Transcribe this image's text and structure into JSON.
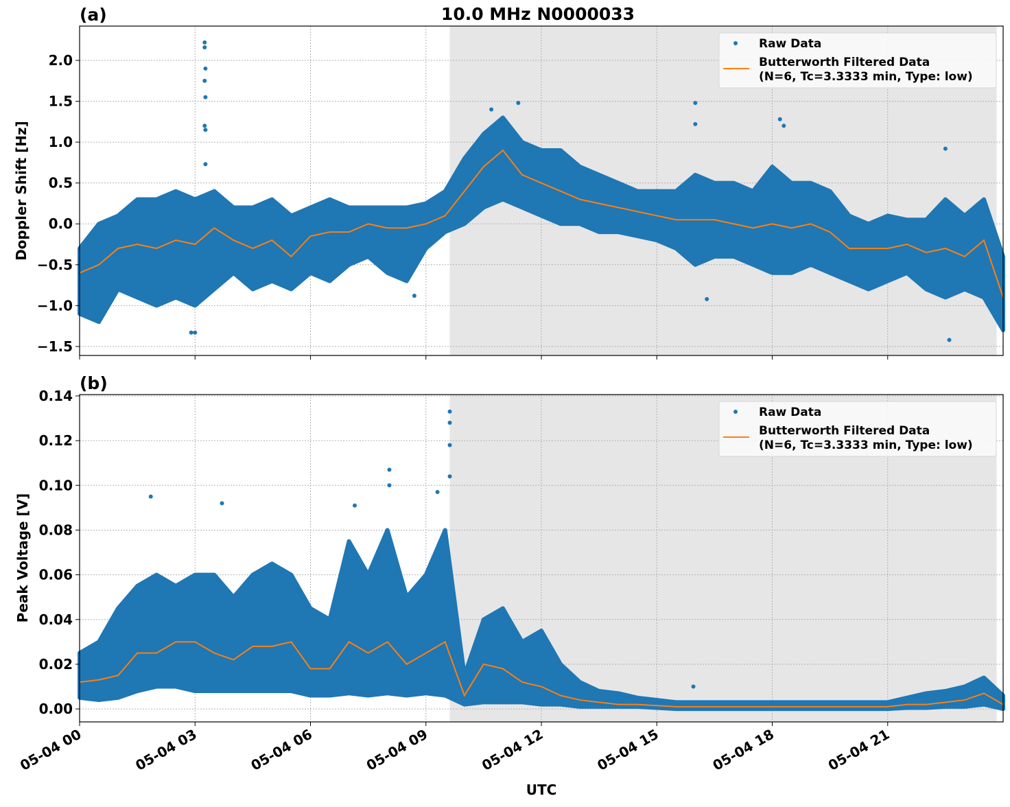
{
  "title": "10.0 MHz N0000033",
  "x_tick_labels": [
    "05-04 00",
    "05-04 03",
    "05-04 06",
    "05-04 09",
    "05-04 12",
    "05-04 15",
    "05-04 18",
    "05-04 21"
  ],
  "x_tick_hours": [
    0,
    3,
    6,
    9,
    12,
    15,
    18,
    21
  ],
  "xlabel": "UTC",
  "colors": {
    "raw": "#1f77b4",
    "filtered": "#ff7f0e",
    "shade": "#e6e6e6"
  },
  "legend": {
    "raw": "Raw Data",
    "filtered_line1": "Butterworth Filtered Data",
    "filtered_line2": "(N=6, Tc=3.3333 min, Type: low)"
  },
  "chart_data": [
    {
      "type": "scatter",
      "panel_label": "(a)",
      "ylabel": "Doppler Shift [Hz]",
      "xlim_hours": [
        0,
        24
      ],
      "ylim": [
        -1.61,
        2.42
      ],
      "y_ticks": [
        "−1.5",
        "−1.0",
        "−0.5",
        "0.0",
        "0.5",
        "1.0",
        "1.5",
        "2.0"
      ],
      "y_tick_values": [
        -1.5,
        -1.0,
        -0.5,
        0.0,
        0.5,
        1.0,
        1.5,
        2.0
      ],
      "grid": true,
      "legend_placement": "upper-right",
      "shaded_span_hours": [
        9.62,
        23.83
      ],
      "x_hours": [
        0,
        0.5,
        1,
        1.5,
        2,
        2.5,
        3,
        3.5,
        4,
        4.5,
        5,
        5.5,
        6,
        6.5,
        7,
        7.5,
        8,
        8.5,
        9,
        9.5,
        10,
        10.5,
        11,
        11.5,
        12,
        12.5,
        13,
        13.5,
        14,
        14.5,
        15,
        15.5,
        16,
        16.5,
        17,
        17.5,
        18,
        18.5,
        19,
        19.5,
        20,
        20.5,
        21,
        21.5,
        22,
        22.5,
        23,
        23.5,
        24
      ],
      "series": [
        {
          "name": "Raw Data",
          "kind": "envelope",
          "low": [
            -1.1,
            -1.2,
            -0.8,
            -0.9,
            -1.0,
            -0.9,
            -1.0,
            -0.8,
            -0.6,
            -0.8,
            -0.7,
            -0.8,
            -0.6,
            -0.7,
            -0.5,
            -0.4,
            -0.6,
            -0.7,
            -0.3,
            -0.1,
            0.0,
            0.2,
            0.3,
            0.2,
            0.1,
            0.0,
            0.0,
            -0.1,
            -0.1,
            -0.15,
            -0.2,
            -0.3,
            -0.5,
            -0.4,
            -0.4,
            -0.5,
            -0.6,
            -0.6,
            -0.5,
            -0.6,
            -0.7,
            -0.8,
            -0.7,
            -0.6,
            -0.8,
            -0.9,
            -0.8,
            -0.9,
            -1.3
          ],
          "high": [
            -0.3,
            0.0,
            0.1,
            0.3,
            0.3,
            0.4,
            0.3,
            0.4,
            0.2,
            0.2,
            0.3,
            0.1,
            0.2,
            0.3,
            0.2,
            0.2,
            0.2,
            0.2,
            0.25,
            0.4,
            0.8,
            1.1,
            1.3,
            1.0,
            0.9,
            0.9,
            0.7,
            0.6,
            0.5,
            0.4,
            0.4,
            0.4,
            0.6,
            0.5,
            0.5,
            0.4,
            0.7,
            0.5,
            0.5,
            0.4,
            0.1,
            0.0,
            0.1,
            0.05,
            0.05,
            0.3,
            0.1,
            0.3,
            -0.4
          ],
          "outliers": [
            [
              3.25,
              2.22
            ],
            [
              3.25,
              2.16
            ],
            [
              3.27,
              1.9
            ],
            [
              3.25,
              1.75
            ],
            [
              3.27,
              1.55
            ],
            [
              3.25,
              1.2
            ],
            [
              3.27,
              1.15
            ],
            [
              3.27,
              0.73
            ],
            [
              3.0,
              -1.33
            ],
            [
              2.9,
              -1.33
            ],
            [
              16.0,
              1.48
            ],
            [
              16.0,
              1.22
            ],
            [
              18.2,
              1.28
            ],
            [
              18.3,
              1.2
            ],
            [
              22.5,
              0.92
            ],
            [
              22.6,
              -1.42
            ],
            [
              11.4,
              1.48
            ],
            [
              10.7,
              1.4
            ],
            [
              16.3,
              -0.92
            ],
            [
              8.7,
              -0.88
            ]
          ]
        },
        {
          "name": "Butterworth Filtered Data",
          "kind": "line",
          "values": [
            -0.6,
            -0.5,
            -0.3,
            -0.25,
            -0.3,
            -0.2,
            -0.25,
            -0.05,
            -0.2,
            -0.3,
            -0.2,
            -0.4,
            -0.15,
            -0.1,
            -0.1,
            0.0,
            -0.05,
            -0.05,
            0.0,
            0.1,
            0.4,
            0.7,
            0.9,
            0.6,
            0.5,
            0.4,
            0.3,
            0.25,
            0.2,
            0.15,
            0.1,
            0.05,
            0.05,
            0.05,
            0.0,
            -0.05,
            0.0,
            -0.05,
            0.0,
            -0.1,
            -0.3,
            -0.3,
            -0.3,
            -0.25,
            -0.35,
            -0.3,
            -0.4,
            -0.2,
            -0.9
          ]
        }
      ]
    },
    {
      "type": "scatter",
      "panel_label": "(b)",
      "ylabel": "Peak Voltage [V]",
      "xlim_hours": [
        0,
        24
      ],
      "ylim": [
        -0.0058,
        0.1406
      ],
      "y_ticks": [
        "0.00",
        "0.02",
        "0.04",
        "0.06",
        "0.08",
        "0.10",
        "0.12",
        "0.14"
      ],
      "y_tick_values": [
        0,
        0.02,
        0.04,
        0.06,
        0.08,
        0.1,
        0.12,
        0.14
      ],
      "grid": true,
      "legend_placement": "upper-right",
      "shaded_span_hours": [
        9.62,
        23.83
      ],
      "x_hours": [
        0,
        0.5,
        1,
        1.5,
        2,
        2.5,
        3,
        3.5,
        4,
        4.5,
        5,
        5.5,
        6,
        6.5,
        7,
        7.5,
        8,
        8.5,
        9,
        9.5,
        10,
        10.5,
        11,
        11.5,
        12,
        12.5,
        13,
        13.5,
        14,
        14.5,
        15,
        15.5,
        16,
        16.5,
        17,
        17.5,
        18,
        18.5,
        19,
        19.5,
        20,
        20.5,
        21,
        21.5,
        22,
        22.5,
        23,
        23.5,
        24
      ],
      "series": [
        {
          "name": "Raw Data",
          "kind": "envelope",
          "low": [
            0.005,
            0.004,
            0.005,
            0.008,
            0.01,
            0.01,
            0.008,
            0.008,
            0.008,
            0.008,
            0.008,
            0.008,
            0.006,
            0.006,
            0.007,
            0.006,
            0.007,
            0.006,
            0.007,
            0.006,
            0.002,
            0.003,
            0.003,
            0.003,
            0.002,
            0.002,
            0.001,
            0.001,
            0.001,
            0.001,
            0.0005,
            0,
            0,
            0,
            0,
            0,
            0,
            0,
            0,
            0,
            0,
            0,
            0,
            0.0005,
            0.0005,
            0.001,
            0.001,
            0.002,
            0.0
          ],
          "high": [
            0.025,
            0.03,
            0.045,
            0.055,
            0.06,
            0.055,
            0.06,
            0.06,
            0.05,
            0.06,
            0.065,
            0.06,
            0.045,
            0.04,
            0.075,
            0.06,
            0.08,
            0.05,
            0.06,
            0.08,
            0.015,
            0.04,
            0.045,
            0.03,
            0.035,
            0.02,
            0.012,
            0.008,
            0.007,
            0.005,
            0.004,
            0.003,
            0.003,
            0.003,
            0.003,
            0.003,
            0.003,
            0.003,
            0.003,
            0.003,
            0.003,
            0.003,
            0.003,
            0.005,
            0.007,
            0.008,
            0.01,
            0.014,
            0.006
          ],
          "outliers": [
            [
              9.62,
              0.133
            ],
            [
              9.62,
              0.128
            ],
            [
              9.62,
              0.118
            ],
            [
              9.62,
              0.104
            ],
            [
              8.05,
              0.107
            ],
            [
              8.05,
              0.1
            ],
            [
              3.7,
              0.092
            ],
            [
              1.85,
              0.095
            ],
            [
              7.15,
              0.091
            ],
            [
              9.3,
              0.097
            ],
            [
              15.95,
              0.01
            ]
          ]
        },
        {
          "name": "Butterworth Filtered Data",
          "kind": "line",
          "values": [
            0.012,
            0.013,
            0.015,
            0.025,
            0.025,
            0.03,
            0.03,
            0.025,
            0.022,
            0.028,
            0.028,
            0.03,
            0.018,
            0.018,
            0.03,
            0.025,
            0.03,
            0.02,
            0.025,
            0.03,
            0.006,
            0.02,
            0.018,
            0.012,
            0.01,
            0.006,
            0.004,
            0.003,
            0.002,
            0.002,
            0.0015,
            0.001,
            0.001,
            0.001,
            0.001,
            0.001,
            0.001,
            0.001,
            0.001,
            0.001,
            0.001,
            0.001,
            0.001,
            0.002,
            0.002,
            0.003,
            0.004,
            0.007,
            0.002
          ]
        }
      ]
    }
  ]
}
